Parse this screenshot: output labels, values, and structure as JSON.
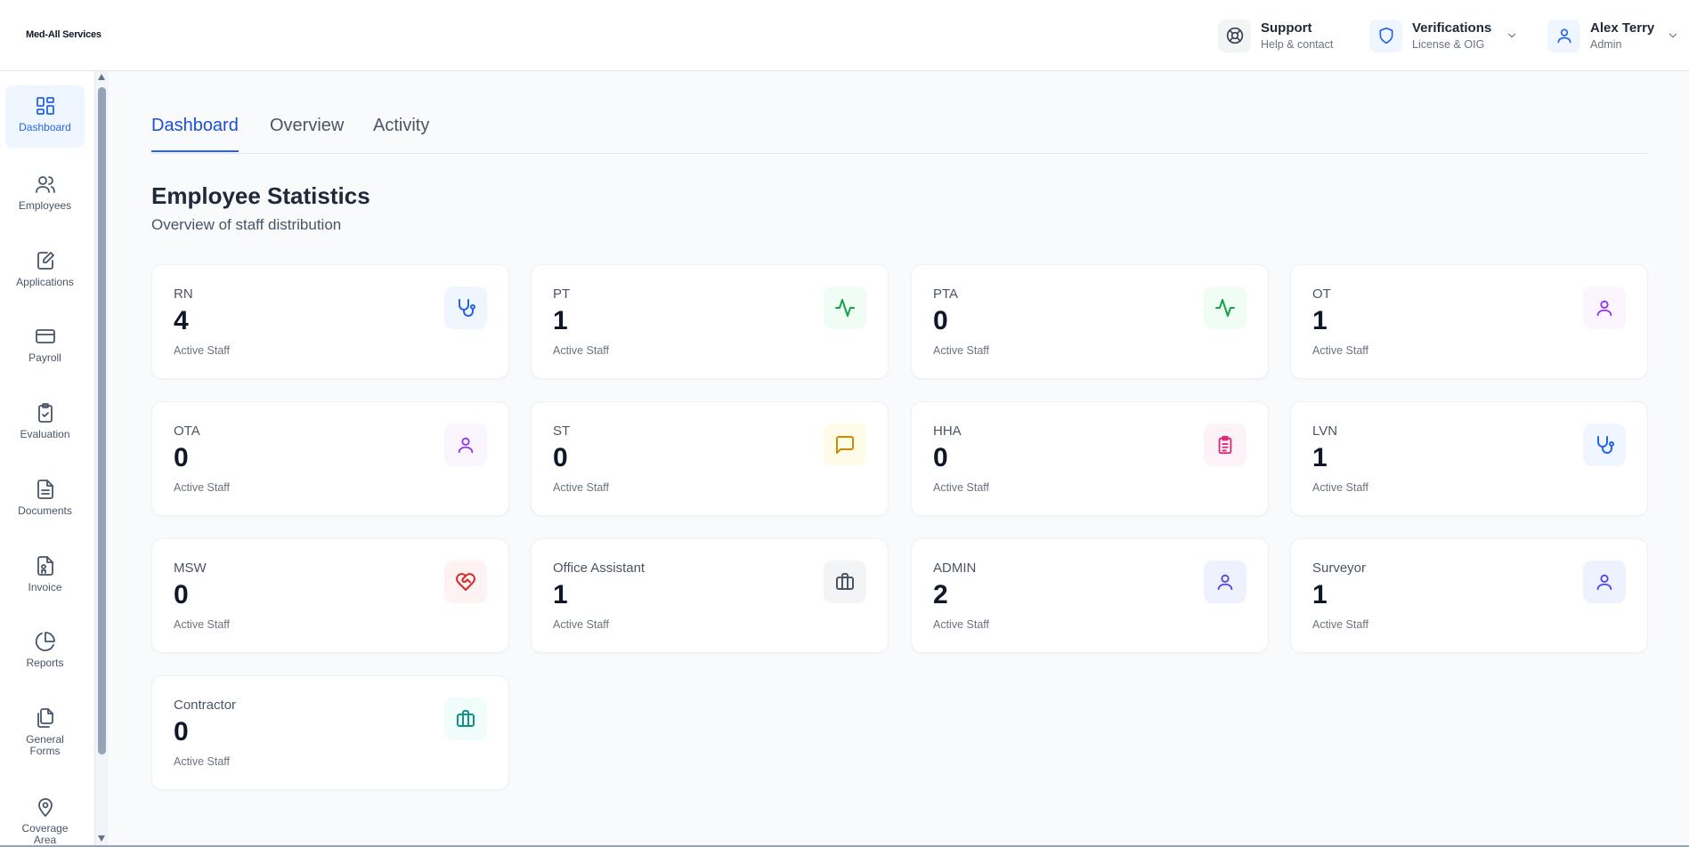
{
  "app": {
    "logo": "Med-All Services"
  },
  "header": {
    "support": {
      "title": "Support",
      "sub": "Help & contact"
    },
    "verifications": {
      "title": "Verifications",
      "sub": "License & OIG"
    },
    "user": {
      "name": "Alex Terry",
      "role": "Admin"
    }
  },
  "sidebar": {
    "items": [
      {
        "label": "Dashboard",
        "icon": "grid-icon",
        "active": true
      },
      {
        "label": "Employees",
        "icon": "users-icon"
      },
      {
        "label": "Applications",
        "icon": "file-edit-icon"
      },
      {
        "label": "Payroll",
        "icon": "credit-card-icon"
      },
      {
        "label": "Evaluation",
        "icon": "clipboard-check-icon"
      },
      {
        "label": "Documents",
        "icon": "document-icon"
      },
      {
        "label": "Invoice",
        "icon": "invoice-icon"
      },
      {
        "label": "Reports",
        "icon": "pie-chart-icon"
      },
      {
        "label": "General Forms",
        "icon": "files-icon"
      },
      {
        "label": "Coverage Area",
        "icon": "map-pin-icon"
      }
    ]
  },
  "tabs": [
    {
      "label": "Dashboard",
      "active": true
    },
    {
      "label": "Overview"
    },
    {
      "label": "Activity"
    }
  ],
  "main": {
    "title": "Employee Statistics",
    "subtitle": "Overview of staff distribution"
  },
  "cards": [
    {
      "label": "RN",
      "value": "4",
      "sub": "Active Staff",
      "icon": "stethoscope-icon",
      "color": "#2563eb",
      "bg": "#eff6ff"
    },
    {
      "label": "PT",
      "value": "1",
      "sub": "Active Staff",
      "icon": "activity-icon",
      "color": "#16a34a",
      "bg": "#f0fdf4"
    },
    {
      "label": "PTA",
      "value": "0",
      "sub": "Active Staff",
      "icon": "activity-icon",
      "color": "#16a34a",
      "bg": "#f0fdf4"
    },
    {
      "label": "OT",
      "value": "1",
      "sub": "Active Staff",
      "icon": "user-icon",
      "color": "#9333ea",
      "bg": "#faf5ff"
    },
    {
      "label": "OTA",
      "value": "0",
      "sub": "Active Staff",
      "icon": "user-icon",
      "color": "#9333ea",
      "bg": "#faf5ff"
    },
    {
      "label": "ST",
      "value": "0",
      "sub": "Active Staff",
      "icon": "message-icon",
      "color": "#ca8a04",
      "bg": "#fefce8"
    },
    {
      "label": "HHA",
      "value": "0",
      "sub": "Active Staff",
      "icon": "clipboard-list-icon",
      "color": "#db2777",
      "bg": "#fdf2f8"
    },
    {
      "label": "LVN",
      "value": "1",
      "sub": "Active Staff",
      "icon": "stethoscope-icon",
      "color": "#2563eb",
      "bg": "#eff6ff"
    },
    {
      "label": "MSW",
      "value": "0",
      "sub": "Active Staff",
      "icon": "heart-handshake-icon",
      "color": "#dc2626",
      "bg": "#fef2f2"
    },
    {
      "label": "Office Assistant",
      "value": "1",
      "sub": "Active Staff",
      "icon": "briefcase-icon",
      "color": "#4b5563",
      "bg": "#f3f4f6"
    },
    {
      "label": "ADMIN",
      "value": "2",
      "sub": "Active Staff",
      "icon": "user-icon",
      "color": "#4f46e5",
      "bg": "#eef2ff"
    },
    {
      "label": "Surveyor",
      "value": "1",
      "sub": "Active Staff",
      "icon": "user-icon",
      "color": "#4f46e5",
      "bg": "#eef2ff"
    },
    {
      "label": "Contractor",
      "value": "0",
      "sub": "Active Staff",
      "icon": "briefcase-icon",
      "color": "#0d9488",
      "bg": "#f0fdfa"
    }
  ]
}
